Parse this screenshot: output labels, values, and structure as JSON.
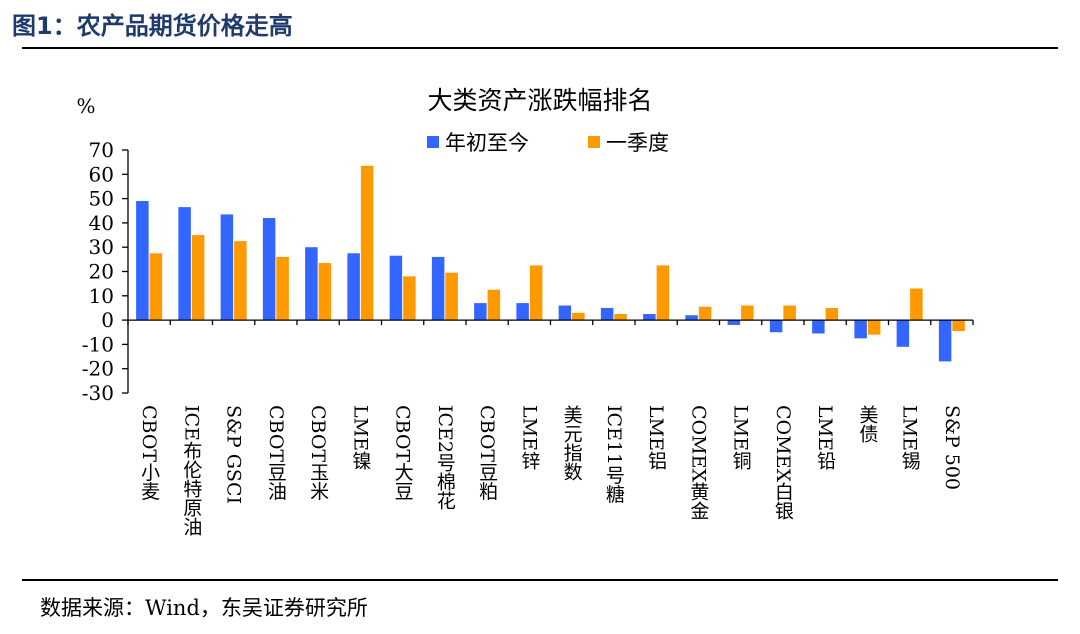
{
  "figure_title": "图1：农产品期货价格走高",
  "source": "数据来源：Wind，东吴证券研究所",
  "colors": {
    "series1": "#3366ff",
    "series2": "#ff9900",
    "title": "#1f3a6e"
  },
  "chart_data": {
    "type": "bar",
    "title": "大类资产涨跌幅排名",
    "ylabel": "%",
    "ylim": [
      -30,
      70
    ],
    "yticks": [
      70,
      60,
      50,
      40,
      30,
      20,
      10,
      0,
      -10,
      -20,
      -30
    ],
    "grid": false,
    "legend_position": "top-center",
    "categories": [
      "CBOT小麦",
      "ICE布伦特原油",
      "S&P GSCI",
      "CBOT豆油",
      "CBOT玉米",
      "LME镍",
      "CBOT大豆",
      "ICE2号棉花",
      "CBOT豆粕",
      "LME锌",
      "美元指数",
      "ICE11号糖",
      "LME铝",
      "COMEX黄金",
      "LME铜",
      "COMEX白银",
      "LME铅",
      "美债",
      "LME锡",
      "S&P 500"
    ],
    "series": [
      {
        "name": "年初至今",
        "values": [
          49,
          46.5,
          43.5,
          42,
          30,
          27.5,
          26.5,
          26,
          7,
          7,
          6,
          5,
          2.5,
          2,
          -2,
          -5,
          -5.5,
          -7.5,
          -11,
          -17
        ]
      },
      {
        "name": "一季度",
        "values": [
          27.5,
          35,
          32.5,
          26,
          23.5,
          63.5,
          18,
          19.5,
          12.5,
          22.5,
          3,
          2.5,
          22.5,
          5.5,
          6,
          6,
          5,
          -6,
          13,
          -4.5
        ]
      }
    ]
  }
}
